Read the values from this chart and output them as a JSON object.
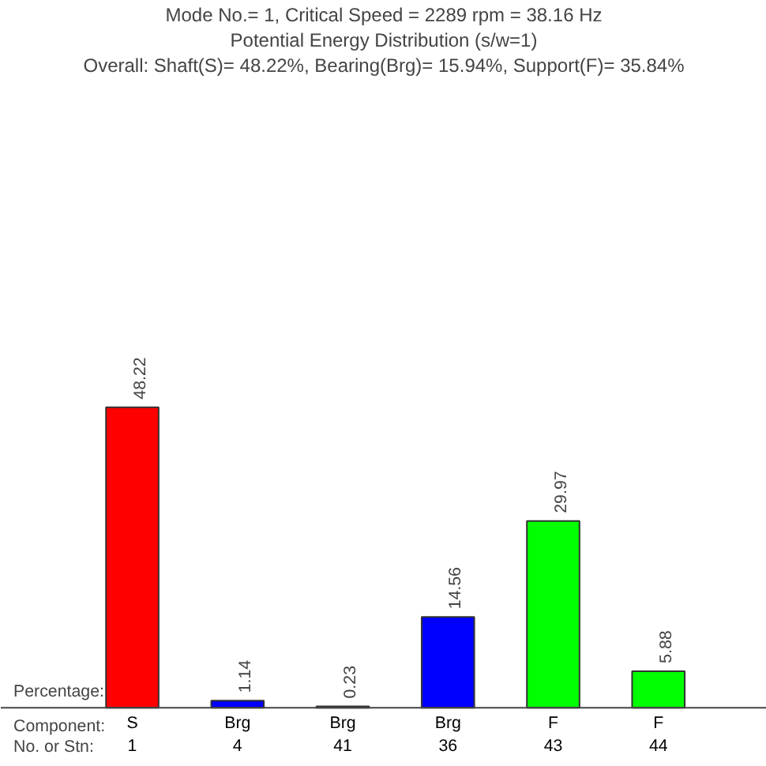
{
  "chart_data": {
    "type": "bar",
    "title": "Mode No.= 1, Critical Speed = 2289 rpm = 38.16 Hz",
    "subtitle": "Potential Energy Distribution (s/w=1)",
    "annotations": [
      "Overall: Shaft(S)= 48.22%, Bearing(Brg)= 15.94%, Support(F)= 35.84%",
      "Percentage:",
      "Component:",
      "No. or Stn:"
    ],
    "categories": [
      "S\n1",
      "Brg\n4",
      "Brg\n41",
      "Brg\n36",
      "F\n43",
      "F\n44"
    ],
    "values": [
      48.22,
      1.14,
      0.23,
      14.56,
      29.97,
      5.88
    ],
    "colors": [
      "#ff0000",
      "#0000ff",
      "#0000ff",
      "#0000ff",
      "#00ff00",
      "#00ff00"
    ],
    "data_labels": true
  }
}
